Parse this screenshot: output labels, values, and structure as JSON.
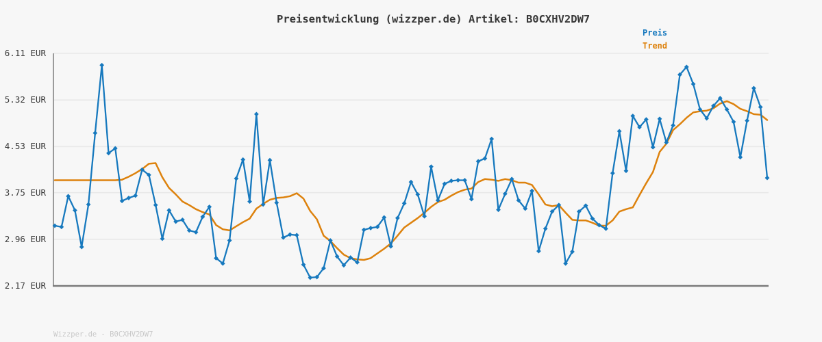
{
  "title": "Preisentwicklung (wizzper.de) Artikel: B0CXHV2DW7",
  "footer": "Wizzper.de - B0CXHV2DW7",
  "legend": {
    "position": "top-right",
    "items": [
      {
        "label": "Preis",
        "color": "#1779be"
      },
      {
        "label": "Trend",
        "color": "#dd820d"
      }
    ]
  },
  "colors": {
    "background": "#f7f7f7",
    "grid": "#e8e8e8",
    "axis_left": "#9b9b9b",
    "axis_bottom": "#7a7a7a",
    "title_text": "#383838",
    "tick_text": "#3a3a3a",
    "footer_text": "#c9c9c9",
    "price_line": "#1779be",
    "trend_line": "#dd820d"
  },
  "y_axis": {
    "unit": "EUR",
    "tick_labels": [
      "6.11 EUR",
      "5.32 EUR",
      "4.53 EUR",
      "3.75 EUR",
      "2.96 EUR",
      "2.17 EUR"
    ],
    "tick_values": [
      6.11,
      5.32,
      4.53,
      3.75,
      2.96,
      2.17
    ]
  },
  "x_axis": {
    "visible": false,
    "note": "no x tick labels shown; points are an evenly spaced time series"
  },
  "chart_data": {
    "type": "line",
    "title": "Preisentwicklung (wizzper.de) Artikel: B0CXHV2DW7",
    "xlabel": "",
    "ylabel": "EUR",
    "ylim": [
      2.17,
      6.11
    ],
    "grid": true,
    "legend_position": "top-right",
    "x": "index 0..106 (evenly spaced, unlabeled)",
    "series": [
      {
        "name": "Preis",
        "color": "#1779be",
        "marker": "diamond",
        "values": [
          3.19,
          3.17,
          3.69,
          3.45,
          2.83,
          3.55,
          4.76,
          5.91,
          4.42,
          4.5,
          3.61,
          3.66,
          3.7,
          4.14,
          4.05,
          3.54,
          2.97,
          3.45,
          3.26,
          3.29,
          3.11,
          3.08,
          3.34,
          3.51,
          2.64,
          2.55,
          2.94,
          3.99,
          4.31,
          3.6,
          5.08,
          3.55,
          4.3,
          3.58,
          2.99,
          3.04,
          3.03,
          2.53,
          2.31,
          2.32,
          2.47,
          2.94,
          2.67,
          2.52,
          2.65,
          2.57,
          3.12,
          3.15,
          3.17,
          3.33,
          2.84,
          3.32,
          3.57,
          3.93,
          3.72,
          3.35,
          4.19,
          3.62,
          3.9,
          3.95,
          3.96,
          3.96,
          3.64,
          4.28,
          4.33,
          4.66,
          3.46,
          3.73,
          3.98,
          3.62,
          3.48,
          3.78,
          2.76,
          3.14,
          3.43,
          3.54,
          2.55,
          2.75,
          3.43,
          3.53,
          3.31,
          3.2,
          3.14,
          4.08,
          4.79,
          4.12,
          5.05,
          4.86,
          4.99,
          4.52,
          5.0,
          4.6,
          4.89,
          5.75,
          5.88,
          5.59,
          5.16,
          5.01,
          5.22,
          5.35,
          5.16,
          4.95,
          4.35,
          4.97,
          5.52,
          5.2,
          4.0
        ]
      },
      {
        "name": "Trend",
        "color": "#dd820d",
        "marker": "none",
        "values": [
          3.96,
          3.96,
          3.96,
          3.96,
          3.96,
          3.96,
          3.96,
          3.96,
          3.96,
          3.96,
          3.97,
          4.02,
          4.08,
          4.15,
          4.24,
          4.25,
          4.01,
          3.83,
          3.72,
          3.6,
          3.54,
          3.47,
          3.42,
          3.38,
          3.2,
          3.13,
          3.11,
          3.18,
          3.25,
          3.31,
          3.48,
          3.56,
          3.63,
          3.66,
          3.67,
          3.69,
          3.74,
          3.65,
          3.44,
          3.3,
          3.02,
          2.93,
          2.81,
          2.7,
          2.64,
          2.62,
          2.61,
          2.64,
          2.72,
          2.8,
          2.89,
          3.02,
          3.16,
          3.24,
          3.32,
          3.41,
          3.51,
          3.59,
          3.63,
          3.7,
          3.76,
          3.8,
          3.82,
          3.93,
          3.98,
          3.97,
          3.95,
          3.98,
          3.96,
          3.92,
          3.92,
          3.88,
          3.72,
          3.55,
          3.52,
          3.54,
          3.41,
          3.29,
          3.28,
          3.28,
          3.24,
          3.19,
          3.19,
          3.28,
          3.43,
          3.47,
          3.5,
          3.71,
          3.91,
          4.1,
          4.44,
          4.58,
          4.81,
          4.91,
          5.02,
          5.11,
          5.13,
          5.14,
          5.18,
          5.26,
          5.3,
          5.25,
          5.17,
          5.13,
          5.08,
          5.07,
          4.98
        ]
      }
    ]
  },
  "plot_geometry_note": "plot area spans full width under title; left axis gray, bottom axis dark gray, no right/top frame"
}
